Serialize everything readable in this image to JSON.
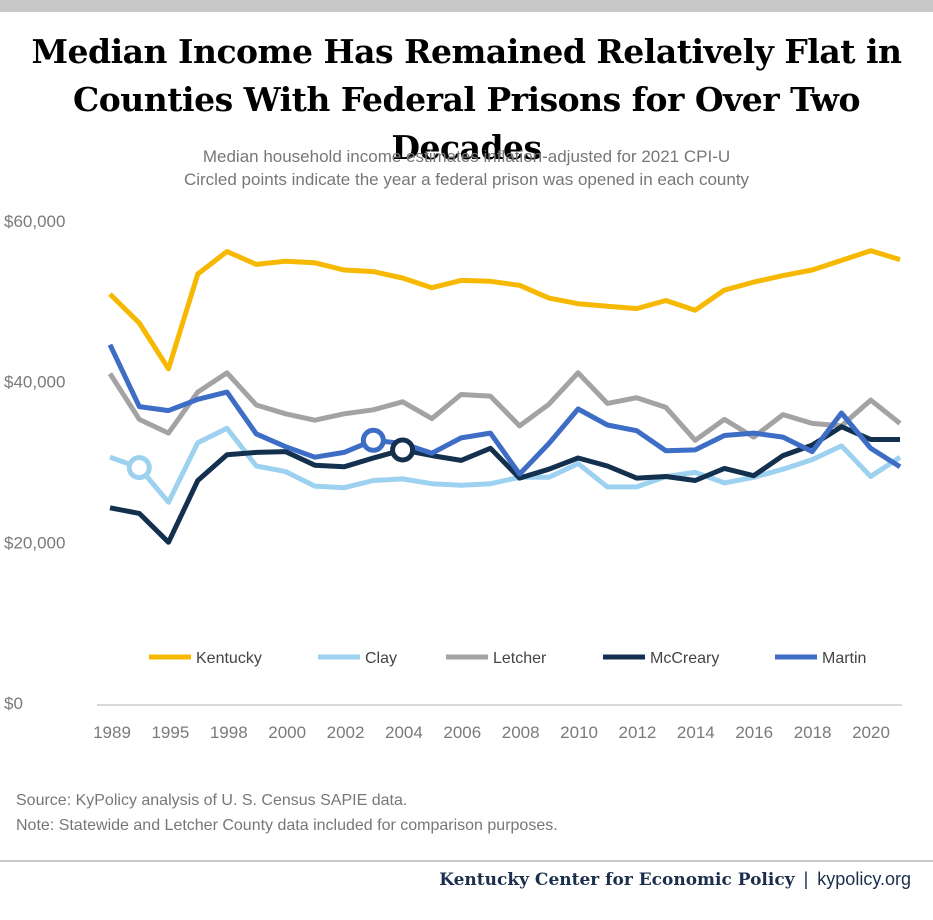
{
  "header": {
    "title_line1": "Median Income Has Remained Relatively Flat in",
    "title_line2": "Counties With Federal Prisons for Over Two Decades",
    "subtitle_line1": "Median household income estimates inflation-adjusted for 2021 CPI-U",
    "subtitle_line2": "Circled points indicate the year a federal prison was opened in each county"
  },
  "footer": {
    "source": "Source: KyPolicy analysis of U. S. Census SAPIE data.",
    "note": "Note: Statewide and Letcher County data included for comparison purposes.",
    "org": "Kentucky Center for Economic Policy",
    "separator": "|",
    "site": "kypolicy.org"
  },
  "chart_data": {
    "type": "line",
    "x": [
      1989,
      1993,
      1995,
      1997,
      1998,
      1999,
      2000,
      2001,
      2002,
      2003,
      2004,
      2005,
      2006,
      2007,
      2008,
      2009,
      2010,
      2011,
      2012,
      2013,
      2014,
      2015,
      2016,
      2017,
      2018,
      2019,
      2020,
      2021
    ],
    "x_tick_labels": [
      "1989",
      "1995",
      "1998",
      "2000",
      "2002",
      "2004",
      "2006",
      "2008",
      "2010",
      "2012",
      "2014",
      "2016",
      "2018",
      "2020"
    ],
    "y_tick_labels": [
      "$0",
      "$20,000",
      "$40,000",
      "$60,000"
    ],
    "y_ticks": [
      0,
      20000,
      40000,
      60000
    ],
    "ylim": [
      0,
      60000
    ],
    "grid": false,
    "legend_position": "bottom",
    "series": [
      {
        "name": "Kentucky",
        "color": "#f6b800",
        "values": [
          50900,
          47300,
          41600,
          53400,
          56200,
          54600,
          55000,
          54800,
          53900,
          53700,
          52900,
          51700,
          52600,
          52500,
          52000,
          50400,
          49700,
          49400,
          49100,
          50100,
          48900,
          51400,
          52400,
          53200,
          53900,
          55100,
          56300,
          55200
        ]
      },
      {
        "name": "Clay",
        "color": "#9cd2f0",
        "values": [
          30600,
          29300,
          25000,
          32400,
          34200,
          29500,
          28800,
          27000,
          26800,
          27700,
          27900,
          27300,
          27100,
          27300,
          28100,
          28100,
          29800,
          26900,
          26900,
          28200,
          28700,
          27400,
          28100,
          29100,
          30300,
          32000,
          28200,
          30600
        ]
      },
      {
        "name": "Letcher",
        "color": "#a3a3a3",
        "values": [
          41000,
          35300,
          33600,
          38700,
          41100,
          37100,
          36000,
          35200,
          36000,
          36500,
          37500,
          35400,
          38400,
          38200,
          34500,
          37200,
          41100,
          37300,
          38000,
          36800,
          32700,
          35300,
          33100,
          35900,
          34800,
          34500,
          37700,
          34800
        ]
      },
      {
        "name": "McCreary",
        "color": "#13304e",
        "values": [
          24300,
          23600,
          20000,
          27700,
          30900,
          31200,
          31300,
          29600,
          29400,
          30500,
          31500,
          30800,
          30200,
          31700,
          28000,
          29100,
          30500,
          29500,
          28000,
          28200,
          27700,
          29200,
          28300,
          30800,
          32100,
          34400,
          32800,
          32800
        ]
      },
      {
        "name": "Martin",
        "color": "#3d6dc4",
        "values": [
          44600,
          36900,
          36400,
          37800,
          38700,
          33500,
          31900,
          30600,
          31200,
          32700,
          32300,
          31100,
          33000,
          33600,
          28500,
          32300,
          36600,
          34600,
          33900,
          31400,
          31500,
          33300,
          33600,
          33100,
          31300,
          36100,
          31700,
          29400
        ]
      }
    ],
    "circled_points": [
      {
        "series": "Clay",
        "x": 1993,
        "y": 29300
      },
      {
        "series": "Martin",
        "x": 2003,
        "y": 32700
      },
      {
        "series": "McCreary",
        "x": 2004,
        "y": 31500
      }
    ]
  }
}
